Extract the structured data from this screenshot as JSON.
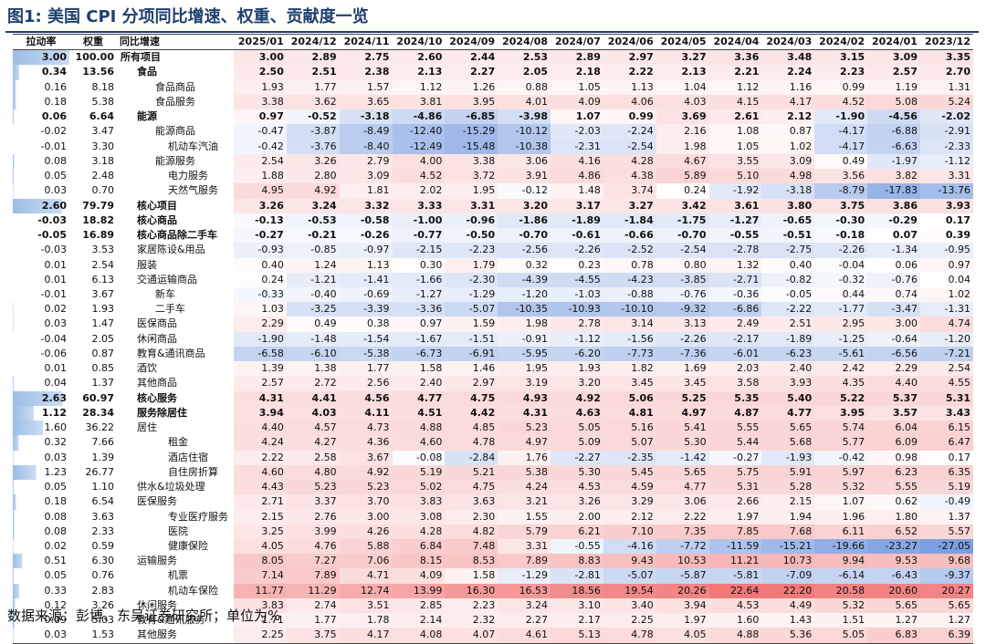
{
  "title": "图1:  美国 CPI 分项同比增速、权重、贡献度一览",
  "source": "数据来源：彭博、东吴证券研究所；单位为%",
  "headers": [
    "拉动率",
    "权重",
    "同比增速",
    "2025/01",
    "2024/12",
    "2024/11",
    "2024/10",
    "2024/09",
    "2024/08",
    "2024/07",
    "2024/06",
    "2024/05",
    "2024/04",
    "2024/03",
    "2024/02",
    "2024/01",
    "2023/12"
  ],
  "colors": {
    "pos_max": "#f07878",
    "neg_max": "#7d9fe0",
    "title": "#1f3f6e",
    "bar": "#9dbde6"
  },
  "rows": [
    {
      "c": "3.00",
      "w": "100.00",
      "name": "所有项目",
      "lvl": 0,
      "b": true,
      "v": [
        "3.00",
        "2.89",
        "2.75",
        "2.60",
        "2.44",
        "2.53",
        "2.89",
        "2.97",
        "3.27",
        "3.36",
        "3.48",
        "3.15",
        "3.09",
        "3.35"
      ]
    },
    {
      "c": "0.34",
      "w": "13.56",
      "name": "食品",
      "lvl": 1,
      "b": true,
      "v": [
        "2.50",
        "2.51",
        "2.38",
        "2.13",
        "2.27",
        "2.05",
        "2.18",
        "2.22",
        "2.13",
        "2.21",
        "2.24",
        "2.23",
        "2.57",
        "2.70"
      ]
    },
    {
      "c": "0.16",
      "w": "8.18",
      "name": "食品商品",
      "lvl": 2,
      "b": false,
      "v": [
        "1.93",
        "1.77",
        "1.57",
        "1.12",
        "1.26",
        "0.88",
        "1.05",
        "1.13",
        "1.04",
        "1.12",
        "1.16",
        "0.99",
        "1.19",
        "1.31"
      ]
    },
    {
      "c": "0.18",
      "w": "5.38",
      "name": "食品服务",
      "lvl": 2,
      "b": false,
      "v": [
        "3.38",
        "3.62",
        "3.65",
        "3.81",
        "3.95",
        "4.01",
        "4.09",
        "4.06",
        "4.03",
        "4.15",
        "4.17",
        "4.52",
        "5.08",
        "5.24"
      ]
    },
    {
      "c": "0.06",
      "w": "6.64",
      "name": "能源",
      "lvl": 1,
      "b": true,
      "v": [
        "0.97",
        "-0.52",
        "-3.18",
        "-4.86",
        "-6.85",
        "-3.98",
        "1.07",
        "0.99",
        "3.69",
        "2.61",
        "2.12",
        "-1.90",
        "-4.56",
        "-2.02"
      ]
    },
    {
      "c": "-0.02",
      "w": "3.47",
      "name": "能源商品",
      "lvl": 2,
      "b": false,
      "v": [
        "-0.47",
        "-3.87",
        "-8.49",
        "-12.40",
        "-15.29",
        "-10.12",
        "-2.03",
        "-2.24",
        "2.16",
        "1.08",
        "0.87",
        "-4.17",
        "-6.88",
        "-2.91"
      ]
    },
    {
      "c": "-0.01",
      "w": "3.30",
      "name": "机动车汽油",
      "lvl": 3,
      "b": false,
      "v": [
        "-0.42",
        "-3.76",
        "-8.40",
        "-12.49",
        "-15.48",
        "-10.38",
        "-2.31",
        "-2.54",
        "1.98",
        "1.05",
        "1.02",
        "-4.17",
        "-6.63",
        "-2.33"
      ]
    },
    {
      "c": "0.08",
      "w": "3.18",
      "name": "能源服务",
      "lvl": 2,
      "b": false,
      "v": [
        "2.54",
        "3.26",
        "2.79",
        "4.00",
        "3.38",
        "3.06",
        "4.16",
        "4.28",
        "4.67",
        "3.55",
        "3.09",
        "0.49",
        "-1.97",
        "-1.12"
      ]
    },
    {
      "c": "0.05",
      "w": "2.48",
      "name": "电力服务",
      "lvl": 3,
      "b": false,
      "v": [
        "1.88",
        "2.80",
        "3.09",
        "4.52",
        "3.72",
        "3.91",
        "4.86",
        "4.38",
        "5.89",
        "5.10",
        "4.98",
        "3.56",
        "3.82",
        "3.31"
      ]
    },
    {
      "c": "0.03",
      "w": "0.70",
      "name": "天然气服务",
      "lvl": 3,
      "b": false,
      "v": [
        "4.95",
        "4.92",
        "1.81",
        "2.02",
        "1.95",
        "-0.12",
        "1.48",
        "3.74",
        "0.24",
        "-1.92",
        "-3.18",
        "-8.79",
        "-17.83",
        "-13.76"
      ]
    },
    {
      "c": "2.60",
      "w": "79.79",
      "name": "核心项目",
      "lvl": 1,
      "b": true,
      "v": [
        "3.26",
        "3.24",
        "3.32",
        "3.33",
        "3.31",
        "3.20",
        "3.17",
        "3.27",
        "3.42",
        "3.61",
        "3.80",
        "3.75",
        "3.86",
        "3.93"
      ]
    },
    {
      "c": "-0.03",
      "w": "18.82",
      "name": "核心商品",
      "lvl": 1,
      "b": true,
      "v": [
        "-0.13",
        "-0.53",
        "-0.58",
        "-1.00",
        "-0.96",
        "-1.86",
        "-1.89",
        "-1.84",
        "-1.75",
        "-1.27",
        "-0.65",
        "-0.30",
        "-0.29",
        "0.17"
      ]
    },
    {
      "c": "-0.05",
      "w": "16.89",
      "name": "核心商品除二手车",
      "lvl": 1,
      "b": true,
      "v": [
        "-0.27",
        "-0.21",
        "-0.26",
        "-0.77",
        "-0.50",
        "-0.70",
        "-0.61",
        "-0.66",
        "-0.70",
        "-0.55",
        "-0.51",
        "-0.18",
        "0.07",
        "0.39"
      ]
    },
    {
      "c": "-0.03",
      "w": "3.53",
      "name": "家居陈设&用品",
      "lvl": 1,
      "b": false,
      "v": [
        "-0.93",
        "-0.85",
        "-0.97",
        "-2.15",
        "-2.23",
        "-2.56",
        "-2.26",
        "-2.52",
        "-2.54",
        "-2.78",
        "-2.75",
        "-2.26",
        "-1.34",
        "-0.95"
      ]
    },
    {
      "c": "0.01",
      "w": "2.54",
      "name": "服装",
      "lvl": 1,
      "b": false,
      "v": [
        "0.40",
        "1.24",
        "1.13",
        "0.30",
        "1.79",
        "0.32",
        "0.23",
        "0.78",
        "0.80",
        "1.32",
        "0.40",
        "-0.04",
        "0.06",
        "0.97"
      ]
    },
    {
      "c": "0.01",
      "w": "6.13",
      "name": "交通运输商品",
      "lvl": 1,
      "b": false,
      "v": [
        "0.24",
        "-1.21",
        "-1.41",
        "-1.66",
        "-2.30",
        "-4.39",
        "-4.55",
        "-4.23",
        "-3.85",
        "-2.71",
        "-0.82",
        "-0.32",
        "-0.76",
        "0.04"
      ]
    },
    {
      "c": "-0.01",
      "w": "3.67",
      "name": "新车",
      "lvl": 2,
      "b": false,
      "v": [
        "-0.33",
        "-0.40",
        "-0.69",
        "-1.27",
        "-1.29",
        "-1.20",
        "-1.03",
        "-0.88",
        "-0.76",
        "-0.36",
        "-0.05",
        "0.44",
        "0.74",
        "1.02"
      ]
    },
    {
      "c": "0.02",
      "w": "1.93",
      "name": "二手车",
      "lvl": 2,
      "b": false,
      "v": [
        "1.03",
        "-3.25",
        "-3.39",
        "-3.36",
        "-5.07",
        "-10.35",
        "-10.93",
        "-10.10",
        "-9.32",
        "-6.86",
        "-2.22",
        "-1.77",
        "-3.47",
        "-1.31"
      ]
    },
    {
      "c": "0.03",
      "w": "1.47",
      "name": "医保商品",
      "lvl": 1,
      "b": false,
      "v": [
        "2.29",
        "0.49",
        "0.38",
        "0.97",
        "1.59",
        "1.98",
        "2.78",
        "3.14",
        "3.13",
        "2.49",
        "2.51",
        "2.95",
        "3.00",
        "4.74"
      ]
    },
    {
      "c": "-0.04",
      "w": "2.05",
      "name": "休闲商品",
      "lvl": 1,
      "b": false,
      "v": [
        "-1.90",
        "-1.48",
        "-1.54",
        "-1.67",
        "-1.51",
        "-0.91",
        "-1.12",
        "-1.56",
        "-2.26",
        "-2.17",
        "-1.89",
        "-1.25",
        "-0.64",
        "-1.20"
      ]
    },
    {
      "c": "-0.06",
      "w": "0.87",
      "name": "教育&通讯商品",
      "lvl": 1,
      "b": false,
      "v": [
        "-6.58",
        "-6.10",
        "-5.38",
        "-6.73",
        "-6.91",
        "-5.95",
        "-6.20",
        "-7.73",
        "-7.36",
        "-6.01",
        "-6.23",
        "-5.61",
        "-6.56",
        "-7.21"
      ]
    },
    {
      "c": "0.01",
      "w": "0.85",
      "name": "酒饮",
      "lvl": 1,
      "b": false,
      "v": [
        "1.39",
        "1.38",
        "1.77",
        "1.58",
        "1.46",
        "1.95",
        "1.93",
        "1.82",
        "1.69",
        "2.03",
        "2.40",
        "2.42",
        "2.29",
        "2.54"
      ]
    },
    {
      "c": "0.04",
      "w": "1.37",
      "name": "其他商品",
      "lvl": 1,
      "b": false,
      "v": [
        "2.57",
        "2.72",
        "2.56",
        "2.40",
        "2.97",
        "3.19",
        "3.20",
        "3.45",
        "3.45",
        "3.58",
        "3.93",
        "4.35",
        "4.40",
        "4.55"
      ]
    },
    {
      "c": "2.63",
      "w": "60.97",
      "name": "核心服务",
      "lvl": 1,
      "b": true,
      "v": [
        "4.31",
        "4.41",
        "4.56",
        "4.77",
        "4.75",
        "4.93",
        "4.92",
        "5.06",
        "5.25",
        "5.35",
        "5.40",
        "5.22",
        "5.37",
        "5.31"
      ]
    },
    {
      "c": "1.12",
      "w": "28.34",
      "name": "服务除居住",
      "lvl": 1,
      "b": true,
      "v": [
        "3.94",
        "4.03",
        "4.11",
        "4.51",
        "4.42",
        "4.31",
        "4.63",
        "4.81",
        "4.97",
        "4.87",
        "4.77",
        "3.95",
        "3.57",
        "3.43"
      ]
    },
    {
      "c": "1.60",
      "w": "36.22",
      "name": "居住",
      "lvl": 1,
      "b": false,
      "v": [
        "4.40",
        "4.57",
        "4.73",
        "4.88",
        "4.85",
        "5.23",
        "5.05",
        "5.16",
        "5.41",
        "5.55",
        "5.65",
        "5.74",
        "6.04",
        "6.15"
      ]
    },
    {
      "c": "0.32",
      "w": "7.66",
      "name": "租金",
      "lvl": 3,
      "b": false,
      "v": [
        "4.24",
        "4.27",
        "4.36",
        "4.60",
        "4.78",
        "4.97",
        "5.09",
        "5.07",
        "5.30",
        "5.44",
        "5.68",
        "5.77",
        "6.09",
        "6.47"
      ]
    },
    {
      "c": "0.03",
      "w": "1.39",
      "name": "酒店住宿",
      "lvl": 3,
      "b": false,
      "v": [
        "2.22",
        "2.58",
        "3.67",
        "-0.08",
        "-2.84",
        "1.76",
        "-2.27",
        "-2.35",
        "-1.42",
        "-0.27",
        "-1.93",
        "-0.42",
        "0.98",
        "0.17"
      ]
    },
    {
      "c": "1.23",
      "w": "26.77",
      "name": "自住房折算",
      "lvl": 3,
      "b": false,
      "v": [
        "4.60",
        "4.80",
        "4.92",
        "5.19",
        "5.21",
        "5.38",
        "5.30",
        "5.45",
        "5.65",
        "5.75",
        "5.91",
        "5.97",
        "6.23",
        "6.35"
      ]
    },
    {
      "c": "0.05",
      "w": "1.10",
      "name": "供水&垃圾处理",
      "lvl": 1,
      "b": false,
      "v": [
        "4.43",
        "5.23",
        "5.23",
        "5.02",
        "4.75",
        "4.24",
        "4.53",
        "4.59",
        "4.77",
        "5.31",
        "5.28",
        "5.32",
        "5.55",
        "5.19"
      ]
    },
    {
      "c": "0.18",
      "w": "6.54",
      "name": "医保服务",
      "lvl": 1,
      "b": false,
      "v": [
        "2.71",
        "3.37",
        "3.70",
        "3.83",
        "3.63",
        "3.21",
        "3.26",
        "3.29",
        "3.06",
        "2.66",
        "2.15",
        "1.07",
        "0.62",
        "-0.49"
      ]
    },
    {
      "c": "0.08",
      "w": "3.63",
      "name": "专业医疗服务",
      "lvl": 3,
      "b": false,
      "v": [
        "2.15",
        "2.76",
        "3.00",
        "3.08",
        "2.30",
        "1.55",
        "2.00",
        "2.12",
        "2.22",
        "1.97",
        "1.94",
        "1.96",
        "1.80",
        "1.37"
      ]
    },
    {
      "c": "0.08",
      "w": "2.33",
      "name": "医院",
      "lvl": 3,
      "b": false,
      "v": [
        "3.25",
        "3.99",
        "4.26",
        "4.28",
        "4.82",
        "5.79",
        "6.21",
        "7.10",
        "7.35",
        "7.85",
        "7.68",
        "6.11",
        "6.52",
        "5.57"
      ]
    },
    {
      "c": "0.02",
      "w": "0.59",
      "name": "健康保险",
      "lvl": 3,
      "b": false,
      "v": [
        "4.05",
        "4.76",
        "5.88",
        "6.84",
        "7.48",
        "3.31",
        "-0.55",
        "-4.16",
        "-7.72",
        "-11.59",
        "-15.21",
        "-19.66",
        "-23.27",
        "-27.05"
      ]
    },
    {
      "c": "0.51",
      "w": "6.30",
      "name": "运输服务",
      "lvl": 1,
      "b": false,
      "v": [
        "8.05",
        "7.27",
        "7.06",
        "8.15",
        "8.53",
        "7.89",
        "8.83",
        "9.43",
        "10.53",
        "11.21",
        "10.73",
        "9.94",
        "9.53",
        "9.68"
      ]
    },
    {
      "c": "0.05",
      "w": "0.76",
      "name": "机票",
      "lvl": 3,
      "b": false,
      "v": [
        "7.14",
        "7.89",
        "4.71",
        "4.09",
        "1.58",
        "-1.29",
        "-2.81",
        "-5.07",
        "-5.87",
        "-5.81",
        "-7.09",
        "-6.14",
        "-6.43",
        "-9.37"
      ]
    },
    {
      "c": "0.33",
      "w": "2.83",
      "name": "机动车保险",
      "lvl": 3,
      "b": false,
      "v": [
        "11.77",
        "11.29",
        "12.74",
        "13.99",
        "16.30",
        "16.53",
        "18.56",
        "19.54",
        "20.26",
        "22.64",
        "22.20",
        "20.58",
        "20.60",
        "20.27"
      ]
    },
    {
      "c": "0.12",
      "w": "3.26",
      "name": "休闲服务",
      "lvl": 1,
      "b": false,
      "v": [
        "3.83",
        "2.74",
        "3.51",
        "2.85",
        "2.23",
        "3.24",
        "3.10",
        "3.40",
        "3.94",
        "4.53",
        "4.49",
        "5.32",
        "5.65",
        "5.65"
      ]
    },
    {
      "c": "0.09",
      "w": "5.03",
      "name": "教育&通讯服务",
      "lvl": 1,
      "b": false,
      "v": [
        "1.71",
        "1.77",
        "1.78",
        "2.14",
        "2.32",
        "2.27",
        "2.17",
        "2.25",
        "1.97",
        "1.60",
        "1.43",
        "1.51",
        "1.27",
        "1.27"
      ]
    },
    {
      "c": "0.03",
      "w": "1.53",
      "name": "其他服务",
      "lvl": 1,
      "b": false,
      "v": [
        "2.25",
        "3.75",
        "4.17",
        "4.08",
        "4.07",
        "4.61",
        "5.13",
        "4.78",
        "4.05",
        "4.88",
        "5.36",
        "5.05",
        "6.83",
        "6.39"
      ]
    }
  ]
}
